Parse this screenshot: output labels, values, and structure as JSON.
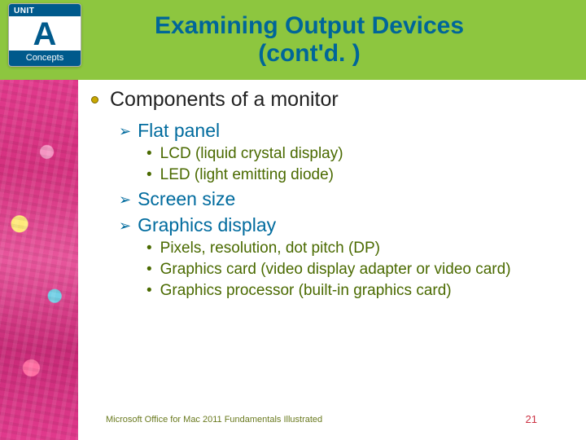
{
  "colors": {
    "header_band": "#8dc63f",
    "title_color": "#006699",
    "badge_blue": "#005a8c",
    "lvl2_color": "#006b9e",
    "lvl3_color": "#4a6a00",
    "footer_color": "#6a7a1f",
    "page_num_color": "#cc3344",
    "h1_bullet_fill": "#c9a800"
  },
  "typography": {
    "title_fontsize": 30,
    "h1_fontsize": 25,
    "lvl2_fontsize": 23,
    "lvl3_fontsize": 19,
    "footer_fontsize": 11
  },
  "badge": {
    "top": "UNIT",
    "letter": "A",
    "bottom": "Concepts"
  },
  "title_line1": "Examining Output Devices",
  "title_line2": "(cont'd. )",
  "heading": "Components of a monitor",
  "items": [
    {
      "label": "Flat panel",
      "sub": [
        "LCD (liquid crystal display)",
        "LED (light emitting diode)"
      ]
    },
    {
      "label": "Screen size",
      "sub": []
    },
    {
      "label": "Graphics display",
      "sub": [
        "Pixels, resolution, dot pitch (DP)",
        "Graphics card (video display adapter or video card)",
        "Graphics processor (built-in graphics card)"
      ]
    }
  ],
  "footer_text": "Microsoft Office for Mac 2011 Fundamentals Illustrated",
  "page_number": "21"
}
